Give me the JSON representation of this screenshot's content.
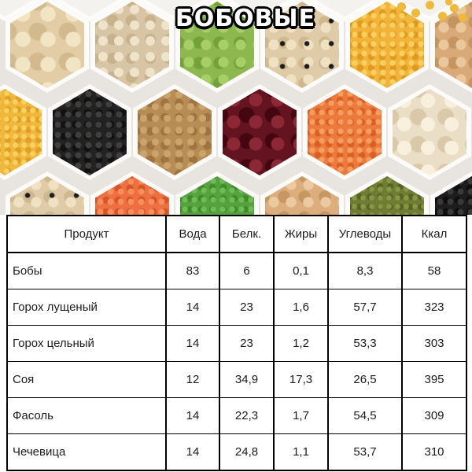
{
  "title": "БОБОВЫЕ",
  "photo": {
    "background": "#e8e5e1",
    "wall_color": "#fcfbf9",
    "spill_color": "#f0b83c",
    "cells": [
      {
        "name": "empty-compartment",
        "row": "T",
        "col": 0,
        "base": "#f4f2ee"
      },
      {
        "name": "empty-compartment",
        "row": "T",
        "col": 1,
        "base": "#f4f2ee"
      },
      {
        "name": "empty-compartment",
        "row": "T",
        "col": 2,
        "base": "#f4f2ee"
      },
      {
        "name": "empty-compartment",
        "row": "T",
        "col": 3,
        "base": "#f4f2ee"
      },
      {
        "name": "empty-compartment",
        "row": "T",
        "col": 4,
        "base": "#f4f2ee"
      },
      {
        "name": "empty-compartment",
        "row": "T",
        "col": 5,
        "base": "#f4f2ee"
      },
      {
        "name": "butter-beans",
        "row": "A",
        "col": 0,
        "base": "#e2cda6",
        "dot": "#f2e5c4",
        "shade": "#d3ba8e",
        "dot_size": 32
      },
      {
        "name": "white-navy-beans",
        "row": "A",
        "col": 1,
        "base": "#d8c5a5",
        "dot": "#efe3c9",
        "shade": "#c8b28c",
        "dot_size": 20
      },
      {
        "name": "green-peas",
        "row": "A",
        "col": 2,
        "base": "#8cb84f",
        "dot": "#a8cf66",
        "shade": "#74a13c",
        "dot_size": 22
      },
      {
        "name": "black-eyed-peas",
        "row": "A",
        "col": 3,
        "base": "#e0cba8",
        "dot": "#f0e1c2",
        "shade": "#cfb890",
        "dot_size": 22,
        "specks": "#1c1c1c"
      },
      {
        "name": "yellow-split-peas",
        "row": "A",
        "col": 4,
        "base": "#f1b33a",
        "dot": "#f9d05f",
        "shade": "#e09a22",
        "dot_size": 12
      },
      {
        "name": "chickpeas",
        "row": "A",
        "col": 5,
        "base": "#d9a977",
        "dot": "#eac89c",
        "shade": "#c4955f",
        "dot_size": 22
      },
      {
        "name": "yellow-lentils",
        "row": "B",
        "col": 0,
        "base": "#f0b73c",
        "dot": "#f8d161",
        "shade": "#dfa026",
        "dot_size": 11
      },
      {
        "name": "black-beans",
        "row": "B",
        "col": 1,
        "base": "#232222",
        "dot": "#413f3e",
        "shade": "#111111",
        "dot_size": 13
      },
      {
        "name": "brown-lentils",
        "row": "B",
        "col": 2,
        "base": "#b78c55",
        "dot": "#cba46c",
        "shade": "#9f7440",
        "dot_size": 15
      },
      {
        "name": "red-kidney-beans",
        "row": "B",
        "col": 3,
        "base": "#641320",
        "dot": "#8c2836",
        "shade": "#45070f",
        "dot_size": 28
      },
      {
        "name": "orange-lentils",
        "row": "B",
        "col": 4,
        "base": "#ec7a3c",
        "dot": "#f69d62",
        "shade": "#d95f24",
        "dot_size": 12
      },
      {
        "name": "white-butter-beans",
        "row": "B",
        "col": 5,
        "base": "#eadec6",
        "dot": "#f8f0dd",
        "shade": "#d9c9a9",
        "dot_size": 30
      },
      {
        "name": "black-eyed-peas",
        "row": "C",
        "col": 0,
        "base": "#e0cba8",
        "dot": "#f0e1c2",
        "shade": "#cfb890",
        "dot_size": 22,
        "specks": "#1c1c1c"
      },
      {
        "name": "red-lentils",
        "row": "C",
        "col": 1,
        "base": "#ee6f40",
        "dot": "#f68e60",
        "shade": "#d65527",
        "dot_size": 13
      },
      {
        "name": "mung-beans",
        "row": "C",
        "col": 2,
        "base": "#55a23e",
        "dot": "#70ba57",
        "shade": "#3f8a2b",
        "dot_size": 12
      },
      {
        "name": "chickpeas",
        "row": "C",
        "col": 3,
        "base": "#dcae7d",
        "dot": "#ecc9a0",
        "shade": "#c79763",
        "dot_size": 22
      },
      {
        "name": "olive-mung-beans",
        "row": "C",
        "col": 4,
        "base": "#6e7c34",
        "dot": "#879744",
        "shade": "#566325",
        "dot_size": 11
      },
      {
        "name": "black-beans",
        "row": "C",
        "col": 5,
        "base": "#1e1d1d",
        "dot": "#3b3939",
        "shade": "#0e0e0e",
        "dot_size": 13
      }
    ]
  },
  "table": {
    "columns": [
      "Продукт",
      "Вода",
      "Белк.",
      "Жиры",
      "Углеводы",
      "Ккал"
    ],
    "rows": [
      [
        "Бобы",
        "83",
        "6",
        "0,1",
        "8,3",
        "58"
      ],
      [
        "Горох лущеный",
        "14",
        "23",
        "1,6",
        "57,7",
        "323"
      ],
      [
        "Горох цельный",
        "14",
        "23",
        "1,2",
        "53,3",
        "303"
      ],
      [
        "Соя",
        "12",
        "34,9",
        "17,3",
        "26,5",
        "395"
      ],
      [
        "Фасоль",
        "14",
        "22,3",
        "1,7",
        "54,5",
        "309"
      ],
      [
        "Чечевица",
        "14",
        "24,8",
        "1,1",
        "53,7",
        "310"
      ]
    ]
  }
}
